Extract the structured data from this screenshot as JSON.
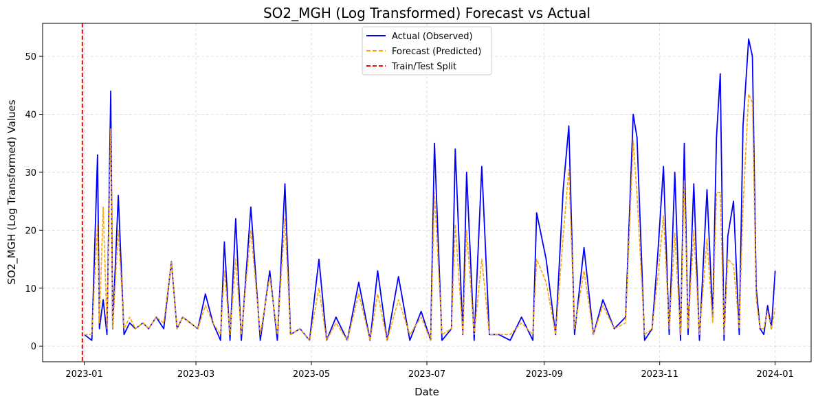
{
  "chart_data": {
    "type": "line",
    "title": "SO2_MGH (Log Transformed) Forecast vs Actual",
    "xlabel": "Date",
    "ylabel": "SO2_MGH (Log Transformed) Values",
    "x_range": [
      "2022-12-10",
      "2024-01-20"
    ],
    "ylim": [
      -2.7,
      55.7
    ],
    "x_ticks": [
      "2023-01",
      "2023-03",
      "2023-05",
      "2023-07",
      "2023-09",
      "2023-11",
      "2024-01"
    ],
    "x_tick_dates": [
      "2023-01-01",
      "2023-03-01",
      "2023-05-01",
      "2023-07-01",
      "2023-09-01",
      "2023-11-01",
      "2024-01-01"
    ],
    "y_ticks": [
      0,
      10,
      20,
      30,
      40,
      50
    ],
    "grid": true,
    "legend_position": "top-center",
    "split_date": "2022-12-31",
    "series": [
      {
        "name": "Actual (Observed)",
        "color": "#0000ff",
        "style": "solid",
        "x": [
          "2023-01-01",
          "2023-01-05",
          "2023-01-08",
          "2023-01-09",
          "2023-01-11",
          "2023-01-13",
          "2023-01-15",
          "2023-01-16",
          "2023-01-19",
          "2023-01-22",
          "2023-01-25",
          "2023-01-28",
          "2023-02-01",
          "2023-02-04",
          "2023-02-08",
          "2023-02-12",
          "2023-02-16",
          "2023-02-19",
          "2023-02-22",
          "2023-02-26",
          "2023-03-02",
          "2023-03-06",
          "2023-03-10",
          "2023-03-14",
          "2023-03-16",
          "2023-03-19",
          "2023-03-22",
          "2023-03-25",
          "2023-03-30",
          "2023-04-04",
          "2023-04-09",
          "2023-04-13",
          "2023-04-17",
          "2023-04-20",
          "2023-04-25",
          "2023-04-30",
          "2023-05-05",
          "2023-05-09",
          "2023-05-14",
          "2023-05-20",
          "2023-05-26",
          "2023-06-01",
          "2023-06-05",
          "2023-06-10",
          "2023-06-16",
          "2023-06-22",
          "2023-06-28",
          "2023-07-03",
          "2023-07-05",
          "2023-07-09",
          "2023-07-14",
          "2023-07-16",
          "2023-07-20",
          "2023-07-22",
          "2023-07-26",
          "2023-07-30",
          "2023-08-03",
          "2023-08-08",
          "2023-08-14",
          "2023-08-20",
          "2023-08-26",
          "2023-08-28",
          "2023-09-02",
          "2023-09-07",
          "2023-09-11",
          "2023-09-14",
          "2023-09-17",
          "2023-09-22",
          "2023-09-27",
          "2023-10-02",
          "2023-10-08",
          "2023-10-14",
          "2023-10-18",
          "2023-10-20",
          "2023-10-24",
          "2023-10-28",
          "2023-10-31",
          "2023-11-03",
          "2023-11-06",
          "2023-11-09",
          "2023-11-12",
          "2023-11-14",
          "2023-11-16",
          "2023-11-19",
          "2023-11-22",
          "2023-11-26",
          "2023-11-29",
          "2023-12-01",
          "2023-12-03",
          "2023-12-05",
          "2023-12-07",
          "2023-12-10",
          "2023-12-13",
          "2023-12-15",
          "2023-12-18",
          "2023-12-20",
          "2023-12-22",
          "2023-12-24",
          "2023-12-26",
          "2023-12-28",
          "2023-12-30",
          "2024-01-01"
        ],
        "values": [
          2,
          1,
          33,
          3,
          8,
          2,
          44,
          3,
          26,
          2,
          4,
          3,
          4,
          3,
          5,
          3,
          14.6,
          3,
          5,
          4,
          3,
          9,
          4,
          1,
          18,
          1,
          22,
          1,
          24,
          1,
          13,
          1,
          28,
          2,
          3,
          1,
          15,
          1,
          5,
          1,
          11,
          1,
          13,
          1,
          12,
          1,
          6,
          1,
          35,
          1,
          3,
          34,
          2,
          30,
          1,
          31,
          2,
          2,
          1,
          5,
          1,
          23,
          15,
          2,
          27,
          38,
          2,
          17,
          2,
          8,
          3,
          5,
          40,
          36,
          1,
          3,
          16,
          31,
          2,
          30,
          1,
          35,
          2,
          28,
          1,
          27,
          5,
          36,
          47,
          1,
          19,
          25,
          2,
          38,
          53,
          50,
          10,
          3,
          2,
          7,
          3,
          13
        ]
      },
      {
        "name": "Forecast (Predicted)",
        "color": "#ffa500",
        "style": "dashed",
        "x": [
          "2023-01-01",
          "2023-01-05",
          "2023-01-08",
          "2023-01-09",
          "2023-01-11",
          "2023-01-13",
          "2023-01-15",
          "2023-01-16",
          "2023-01-19",
          "2023-01-22",
          "2023-01-25",
          "2023-01-28",
          "2023-02-01",
          "2023-02-04",
          "2023-02-08",
          "2023-02-12",
          "2023-02-16",
          "2023-02-19",
          "2023-02-22",
          "2023-02-26",
          "2023-03-02",
          "2023-03-06",
          "2023-03-10",
          "2023-03-14",
          "2023-03-16",
          "2023-03-19",
          "2023-03-22",
          "2023-03-25",
          "2023-03-30",
          "2023-04-04",
          "2023-04-09",
          "2023-04-13",
          "2023-04-17",
          "2023-04-20",
          "2023-04-25",
          "2023-04-30",
          "2023-05-05",
          "2023-05-09",
          "2023-05-14",
          "2023-05-20",
          "2023-05-26",
          "2023-06-01",
          "2023-06-05",
          "2023-06-10",
          "2023-06-16",
          "2023-06-22",
          "2023-06-28",
          "2023-07-03",
          "2023-07-05",
          "2023-07-09",
          "2023-07-14",
          "2023-07-16",
          "2023-07-20",
          "2023-07-22",
          "2023-07-26",
          "2023-07-30",
          "2023-08-03",
          "2023-08-08",
          "2023-08-14",
          "2023-08-20",
          "2023-08-26",
          "2023-08-28",
          "2023-09-02",
          "2023-09-07",
          "2023-09-11",
          "2023-09-14",
          "2023-09-17",
          "2023-09-22",
          "2023-09-27",
          "2023-10-02",
          "2023-10-08",
          "2023-10-14",
          "2023-10-18",
          "2023-10-20",
          "2023-10-24",
          "2023-10-28",
          "2023-10-31",
          "2023-11-03",
          "2023-11-06",
          "2023-11-09",
          "2023-11-12",
          "2023-11-14",
          "2023-11-16",
          "2023-11-19",
          "2023-11-22",
          "2023-11-26",
          "2023-11-29",
          "2023-12-01",
          "2023-12-03",
          "2023-12-05",
          "2023-12-07",
          "2023-12-10",
          "2023-12-13",
          "2023-12-15",
          "2023-12-18",
          "2023-12-20",
          "2023-12-22",
          "2023-12-24",
          "2023-12-26",
          "2023-12-28",
          "2023-12-30",
          "2024-01-01"
        ],
        "values": [
          2,
          2,
          21,
          4,
          24,
          3,
          37.5,
          3,
          20,
          3,
          5,
          3,
          4,
          3,
          5,
          4,
          14.5,
          3,
          5,
          4,
          3,
          7,
          4,
          2,
          13,
          2,
          15,
          2,
          20,
          2,
          12,
          2,
          22,
          2,
          3,
          1,
          10,
          1,
          4,
          1,
          9,
          1,
          9,
          1,
          8,
          2,
          5,
          1,
          26.5,
          2,
          3,
          21,
          2,
          20,
          2,
          15,
          2,
          2,
          2,
          4,
          2,
          15,
          11,
          2,
          19,
          30.5,
          3,
          13,
          2,
          7,
          3,
          4,
          35.5,
          26,
          2,
          3,
          12,
          22.5,
          3,
          19.5,
          2,
          28.5,
          3,
          20,
          2,
          18.5,
          4,
          26.5,
          26.5,
          2,
          15,
          14,
          3,
          24,
          43.5,
          42,
          8,
          3,
          3,
          6,
          3,
          6.5
        ]
      },
      {
        "name": "Train/Test Split",
        "color": "#ff0000",
        "style": "dashed"
      }
    ]
  }
}
